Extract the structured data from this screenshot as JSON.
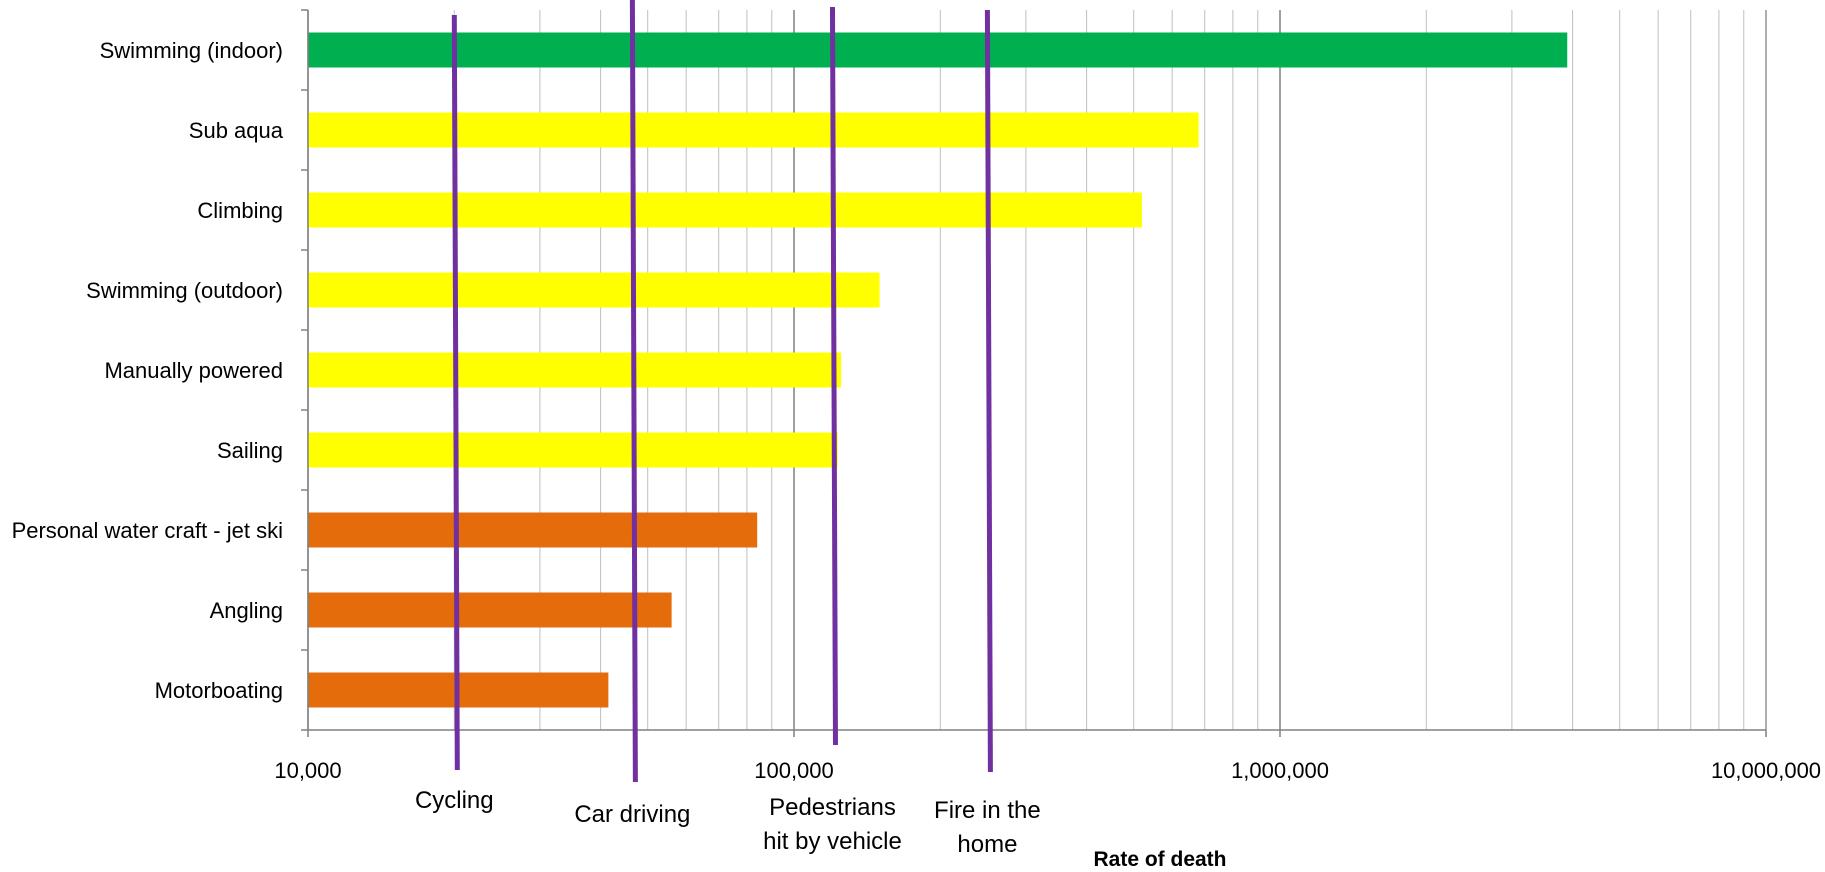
{
  "chart_data": {
    "type": "bar",
    "orientation": "horizontal",
    "x_scale": "log",
    "xlim": [
      10000,
      10000000
    ],
    "xlabel": "Rate of death",
    "ylabel": "",
    "title": "",
    "grid": true,
    "legend": "none",
    "x_tick_labels": [
      "10,000",
      "100,000",
      "1,000,000",
      "10,000,000"
    ],
    "x_tick_values": [
      10000,
      100000,
      1000000,
      10000000
    ],
    "categories": [
      "Swimming (indoor)",
      "Sub aqua",
      "Climbing",
      "Swimming (outdoor)",
      "Manually powered",
      "Sailing",
      "Personal water craft - jet ski",
      "Angling",
      "Motorboating"
    ],
    "values": [
      3900000,
      680000,
      520000,
      150000,
      125000,
      123000,
      84000,
      56000,
      41500
    ],
    "bar_colors": [
      "#00b050",
      "#ffff00",
      "#ffff00",
      "#ffff00",
      "#ffff00",
      "#ffff00",
      "#e46c0a",
      "#e46c0a",
      "#e46c0a"
    ],
    "reference_lines": [
      {
        "label_lines": [
          "Cycling"
        ],
        "value": 20000
      },
      {
        "label_lines": [
          "Car driving"
        ],
        "value": 46500
      },
      {
        "label_lines": [
          "Pedestrians",
          "hit by vehicle"
        ],
        "value": 120000
      },
      {
        "label_lines": [
          "Fire in the",
          "home"
        ],
        "value": 250000
      }
    ],
    "reference_line_color": "#7030a0"
  }
}
